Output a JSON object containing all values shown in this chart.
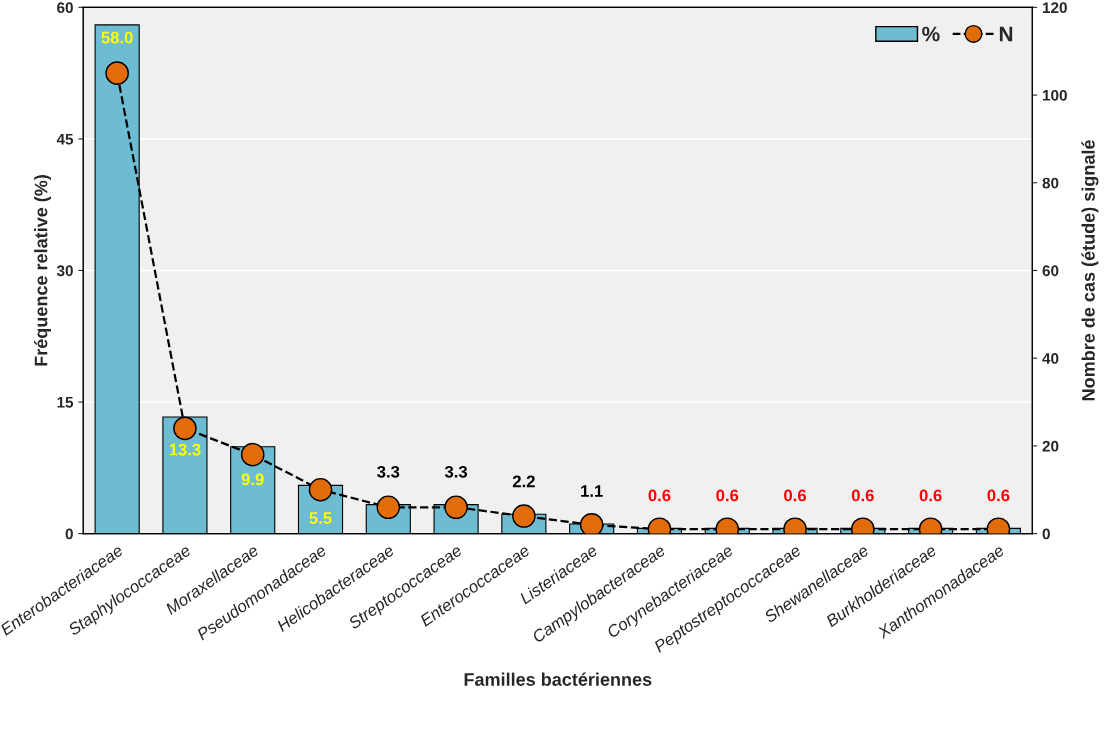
{
  "chart_data": {
    "type": "bar",
    "xlabel": "Familles bactériennes",
    "ylabel": "Fréquence relative (%)",
    "y2label": "Nombre de cas (étude) signalé",
    "categories": [
      "Enterobacteriaceae",
      "Staphylococcaceae",
      "Moraxellaceae",
      "Pseudomonadaceae",
      "Helicobacteraceae",
      "Streptococcaceae",
      "Enterococcaceae",
      "Listeriaceae",
      "Campylobacteraceae",
      "Corynebacteriaceae",
      "Peptostreptococcaceae",
      "Shewanellaceae",
      "Burkholderiaceae",
      "Xanthomonadaceae"
    ],
    "series": [
      {
        "name": "%",
        "color": "#6dbcd1",
        "values": [
          58.0,
          13.3,
          9.9,
          5.5,
          3.3,
          3.3,
          2.2,
          1.1,
          0.6,
          0.6,
          0.6,
          0.6,
          0.6,
          0.6
        ],
        "value_labels": [
          "58.0",
          "13.3",
          "9.9",
          "5.5",
          "3.3",
          "3.3",
          "2.2",
          "1.1",
          "0.6",
          "0.6",
          "0.6",
          "0.6",
          "0.6",
          "0.6"
        ]
      },
      {
        "name": "N",
        "type": "line",
        "axis": "y2",
        "color": "#e36c0a",
        "marker": "circle",
        "line_style": "dashed",
        "values": [
          105,
          24,
          18,
          10,
          6,
          6,
          4,
          2,
          1,
          1,
          1,
          1,
          1,
          1
        ]
      }
    ],
    "ylim": [
      0,
      60
    ],
    "yticks": [
      0,
      15,
      30,
      45,
      60
    ],
    "y2lim": [
      0,
      120
    ],
    "y2ticks": [
      0,
      20,
      40,
      60,
      80,
      100,
      120
    ],
    "grid": "y",
    "legend": "top right"
  }
}
